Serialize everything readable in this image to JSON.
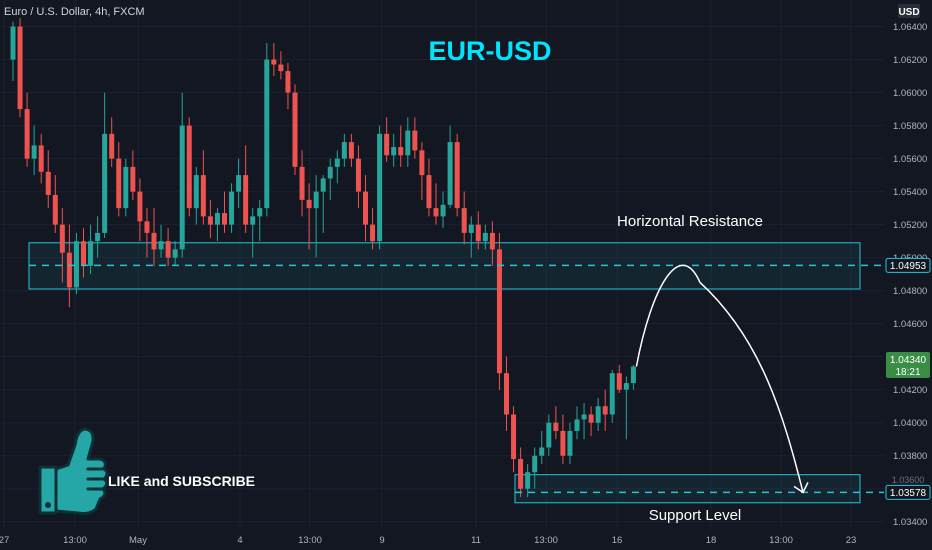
{
  "header": {
    "symbol_info": "Euro / U.S. Dollar, 4h, FXCM",
    "currency": "USD"
  },
  "title": "EUR-USD",
  "zones": {
    "resistance_label": "Horizontal Resistance",
    "support_label": "Support Level",
    "resistance_range": [
      1.0481,
      1.0509
    ],
    "support_range": [
      1.03515,
      1.03685
    ]
  },
  "promo": {
    "text": "LIKE and SUBSCRIBE",
    "icon": "thumbs-up-icon"
  },
  "price_tags": {
    "resistance": "1.04953",
    "current": "1.04340",
    "countdown": "18:21",
    "support": "1.03578",
    "hidden_behind_support": "1.03600"
  },
  "colors": {
    "background": "#131722",
    "bull": "#26a69a",
    "bear": "#ef5350",
    "zone": "#26c6da",
    "title": "#00e5ff",
    "text": "#d1d4dc"
  },
  "chart_data": {
    "type": "candlestick",
    "title": "EUR-USD",
    "x_ticks": [
      "27",
      "13:00",
      "May",
      "4",
      "13:00",
      "9",
      "11",
      "13:00",
      "16",
      "18",
      "13:00",
      "23"
    ],
    "y_ticks": [
      "1.06400",
      "1.06200",
      "1.06000",
      "1.05800",
      "1.05600",
      "1.05400",
      "1.05200",
      "1.05000",
      "1.04800",
      "1.04600",
      "1.04400",
      "1.04200",
      "1.04000",
      "1.03800",
      "1.03600",
      "1.03400"
    ],
    "ylim": [
      1.0335,
      1.0647
    ],
    "candles": [
      [
        1.062,
        1.0643,
        1.0607,
        1.064
      ],
      [
        1.064,
        1.0645,
        1.0585,
        1.059
      ],
      [
        1.059,
        1.06,
        1.0555,
        1.056
      ],
      [
        1.056,
        1.058,
        1.055,
        1.0568
      ],
      [
        1.0568,
        1.0575,
        1.0545,
        1.0552
      ],
      [
        1.0552,
        1.0565,
        1.053,
        1.0538
      ],
      [
        1.0538,
        1.055,
        1.0515,
        1.052
      ],
      [
        1.052,
        1.053,
        1.0485,
        1.0503
      ],
      [
        1.0503,
        1.052,
        1.047,
        1.0482
      ],
      [
        1.0482,
        1.0515,
        1.0478,
        1.051
      ],
      [
        1.051,
        1.0518,
        1.0488,
        1.0495
      ],
      [
        1.0495,
        1.052,
        1.049,
        1.051
      ],
      [
        1.051,
        1.0525,
        1.05,
        1.0515
      ],
      [
        1.0515,
        1.06,
        1.0512,
        1.0575
      ],
      [
        1.0575,
        1.0585,
        1.0555,
        1.056
      ],
      [
        1.056,
        1.057,
        1.0525,
        1.053
      ],
      [
        1.053,
        1.056,
        1.0525,
        1.0555
      ],
      [
        1.0555,
        1.0565,
        1.0535,
        1.054
      ],
      [
        1.054,
        1.0548,
        1.051,
        1.0522
      ],
      [
        1.0522,
        1.053,
        1.05,
        1.0515
      ],
      [
        1.0515,
        1.053,
        1.0495,
        1.0505
      ],
      [
        1.0505,
        1.052,
        1.05,
        1.051
      ],
      [
        1.051,
        1.0518,
        1.0495,
        1.05
      ],
      [
        1.05,
        1.051,
        1.0495,
        1.0505
      ],
      [
        1.0505,
        1.06,
        1.05,
        1.058
      ],
      [
        1.058,
        1.0585,
        1.0525,
        1.053
      ],
      [
        1.053,
        1.0555,
        1.052,
        1.055
      ],
      [
        1.055,
        1.0565,
        1.052,
        1.0525
      ],
      [
        1.0525,
        1.0535,
        1.0512,
        1.052
      ],
      [
        1.052,
        1.053,
        1.051,
        1.0527
      ],
      [
        1.0527,
        1.054,
        1.0515,
        1.052
      ],
      [
        1.052,
        1.0545,
        1.0515,
        1.054
      ],
      [
        1.054,
        1.056,
        1.053,
        1.055
      ],
      [
        1.055,
        1.0568,
        1.0515,
        1.052
      ],
      [
        1.052,
        1.053,
        1.05,
        1.0525
      ],
      [
        1.0525,
        1.0535,
        1.051,
        1.053
      ],
      [
        1.053,
        1.063,
        1.0525,
        1.062
      ],
      [
        1.062,
        1.063,
        1.061,
        1.0617
      ],
      [
        1.0617,
        1.0625,
        1.0608,
        1.0613
      ],
      [
        1.0613,
        1.0618,
        1.059,
        1.06
      ],
      [
        1.06,
        1.0605,
        1.055,
        1.0555
      ],
      [
        1.0555,
        1.0565,
        1.0525,
        1.0535
      ],
      [
        1.0535,
        1.0545,
        1.0505,
        1.053
      ],
      [
        1.053,
        1.055,
        1.05,
        1.054
      ],
      [
        1.054,
        1.055,
        1.0515,
        1.0548
      ],
      [
        1.0548,
        1.056,
        1.0535,
        1.0555
      ],
      [
        1.0555,
        1.0565,
        1.0545,
        1.056
      ],
      [
        1.056,
        1.0575,
        1.0555,
        1.057
      ],
      [
        1.057,
        1.0575,
        1.0555,
        1.056
      ],
      [
        1.056,
        1.0568,
        1.053,
        1.054
      ],
      [
        1.054,
        1.055,
        1.051,
        1.052
      ],
      [
        1.052,
        1.053,
        1.0505,
        1.051
      ],
      [
        1.051,
        1.058,
        1.0505,
        1.0575
      ],
      [
        1.0575,
        1.0585,
        1.0558,
        1.0562
      ],
      [
        1.0562,
        1.0575,
        1.0555,
        1.0567
      ],
      [
        1.0567,
        1.058,
        1.0555,
        1.0562
      ],
      [
        1.0562,
        1.0585,
        1.0555,
        1.0577
      ],
      [
        1.0577,
        1.0585,
        1.056,
        1.0565
      ],
      [
        1.0565,
        1.057,
        1.0535,
        1.055
      ],
      [
        1.055,
        1.056,
        1.0525,
        1.053
      ],
      [
        1.053,
        1.0545,
        1.052,
        1.0525
      ],
      [
        1.0525,
        1.054,
        1.0518,
        1.0532
      ],
      [
        1.0532,
        1.058,
        1.053,
        1.057
      ],
      [
        1.057,
        1.0575,
        1.0525,
        1.053
      ],
      [
        1.053,
        1.054,
        1.0508,
        1.0515
      ],
      [
        1.0515,
        1.0525,
        1.05,
        1.052
      ],
      [
        1.052,
        1.0528,
        1.0505,
        1.051
      ],
      [
        1.051,
        1.052,
        1.0505,
        1.0515
      ],
      [
        1.0515,
        1.0522,
        1.0495,
        1.0505
      ],
      [
        1.0505,
        1.0515,
        1.042,
        1.043
      ],
      [
        1.043,
        1.044,
        1.0395,
        1.0405
      ],
      [
        1.0405,
        1.041,
        1.037,
        1.0378
      ],
      [
        1.0378,
        1.0385,
        1.0355,
        1.036
      ],
      [
        1.036,
        1.0375,
        1.0355,
        1.037
      ],
      [
        1.037,
        1.0385,
        1.036,
        1.038
      ],
      [
        1.038,
        1.0395,
        1.0375,
        1.0385
      ],
      [
        1.0385,
        1.0405,
        1.038,
        1.04
      ],
      [
        1.04,
        1.041,
        1.039,
        1.0395
      ],
      [
        1.0395,
        1.0405,
        1.0375,
        1.038
      ],
      [
        1.038,
        1.04,
        1.0375,
        1.0395
      ],
      [
        1.0395,
        1.041,
        1.039,
        1.0402
      ],
      [
        1.0402,
        1.0412,
        1.039,
        1.0405
      ],
      [
        1.0405,
        1.041,
        1.0392,
        1.04
      ],
      [
        1.04,
        1.0415,
        1.0395,
        1.041
      ],
      [
        1.041,
        1.042,
        1.0395,
        1.0405
      ],
      [
        1.0405,
        1.0432,
        1.04,
        1.043
      ],
      [
        1.043,
        1.0435,
        1.0418,
        1.042
      ],
      [
        1.042,
        1.0428,
        1.039,
        1.0424
      ],
      [
        1.0424,
        1.0435,
        1.042,
        1.0434
      ]
    ],
    "projection": {
      "from": 1.0434,
      "peak": 1.0488,
      "to": 1.03578
    }
  }
}
